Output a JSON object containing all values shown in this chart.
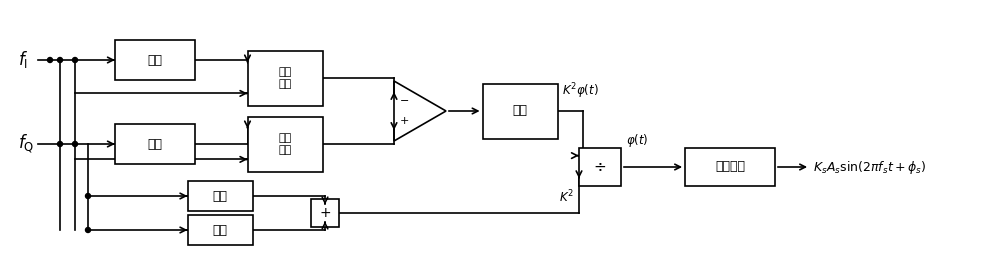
{
  "figsize": [
    10.0,
    2.74
  ],
  "dpi": 100,
  "bg": "#ffffff",
  "lc": "#000000",
  "lw": 1.2,
  "label_fI": "$f_\\mathrm{I}$",
  "label_fQ": "$f_\\mathrm{Q}$",
  "label_weifen": "微分",
  "label_jiaochaCheng": "交叉\n相乘",
  "label_jifen": "积分",
  "label_pingfang": "平方",
  "label_gaotong": "高通滤波",
  "label_K2phi": "$K^2\\varphi(t)$",
  "label_phi": "$\\varphi(t)$",
  "label_K2": "$K^2$",
  "label_out": "$K_s A_s \\sin(2\\pi f_s t+\\phi_s)$",
  "label_minus": "−",
  "label_plus": "+"
}
